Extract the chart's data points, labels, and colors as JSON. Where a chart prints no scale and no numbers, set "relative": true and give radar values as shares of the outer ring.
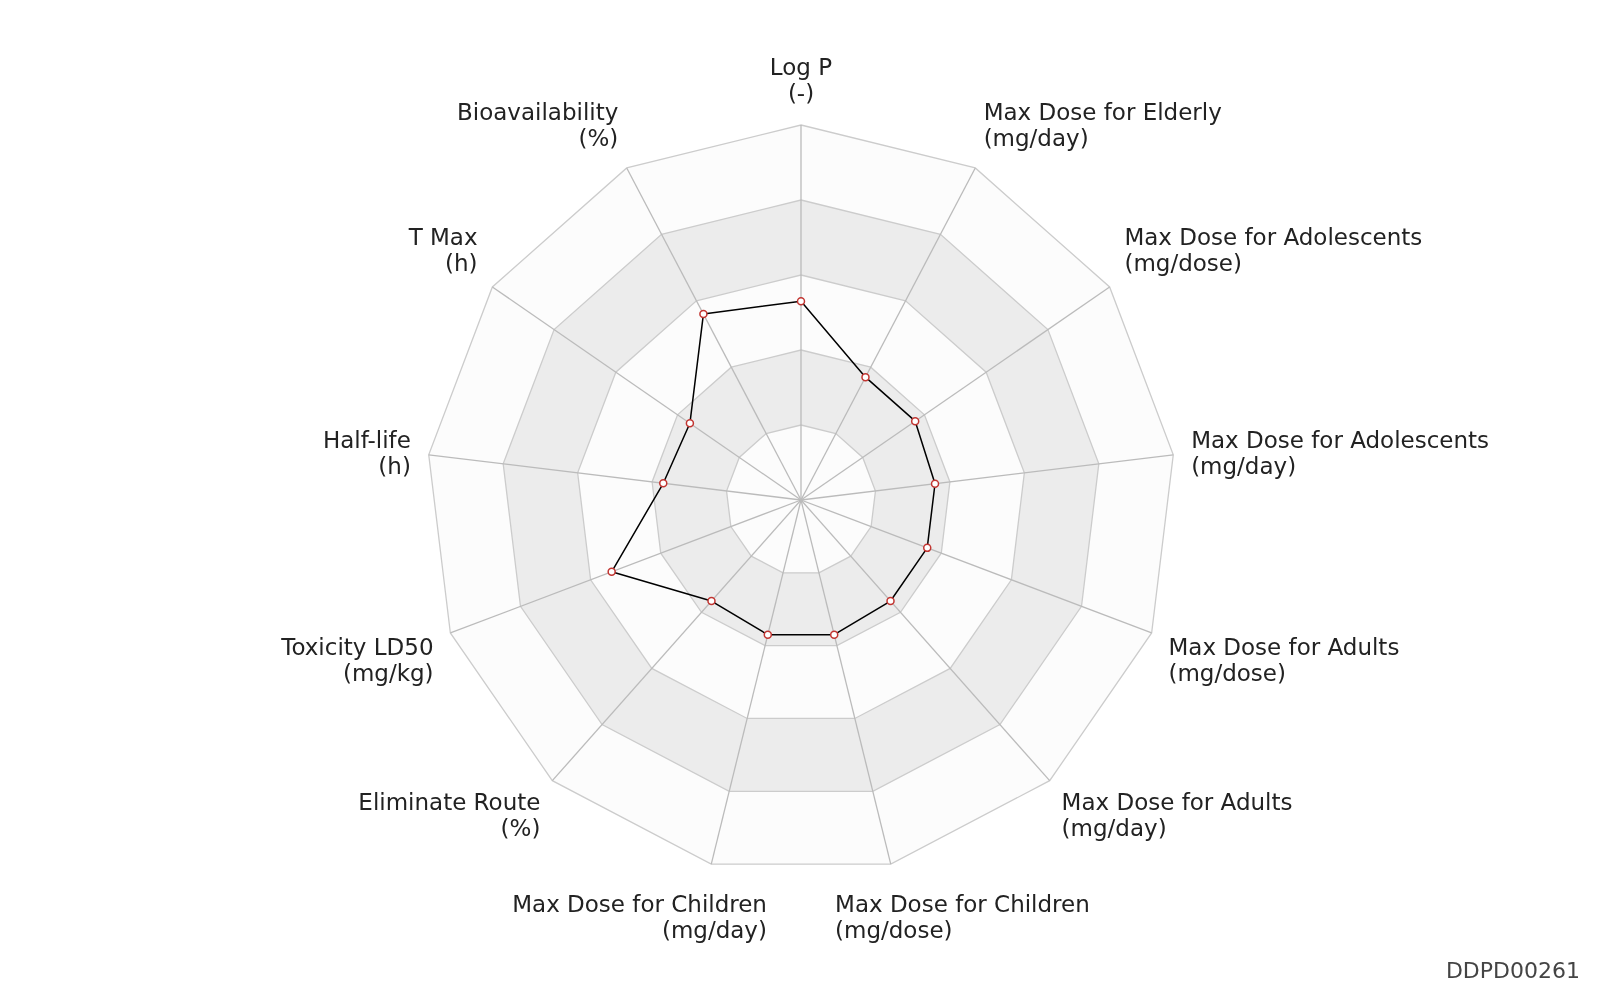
{
  "chart_data": {
    "type": "radar",
    "relative": true,
    "categories": [
      "Log P\n(-)",
      "Max Dose for Elderly\n(mg/day)",
      "Max Dose for Adolescents\n(mg/dose)",
      "Max Dose for Adolescents\n(mg/day)",
      "Max Dose for Adults\n(mg/dose)",
      "Max Dose for Adults\n(mg/day)",
      "Max Dose for Children\n(mg/dose)",
      "Max Dose for Children\n(mg/day)",
      "Eliminate Route\n(%)",
      "Toxicity LD50\n(mg/kg)",
      "Half-life\n(h)",
      "T Max\n(h)",
      "Bioavailability\n(%)"
    ],
    "series": [
      {
        "color": "#000000",
        "values": [
          0.53,
          0.37,
          0.37,
          0.36,
          0.36,
          0.36,
          0.37,
          0.37,
          0.36,
          0.54,
          0.37,
          0.36,
          0.56
        ]
      }
    ],
    "marker": "circle",
    "legend": false,
    "annotations": [
      "DDPD00261"
    ]
  }
}
